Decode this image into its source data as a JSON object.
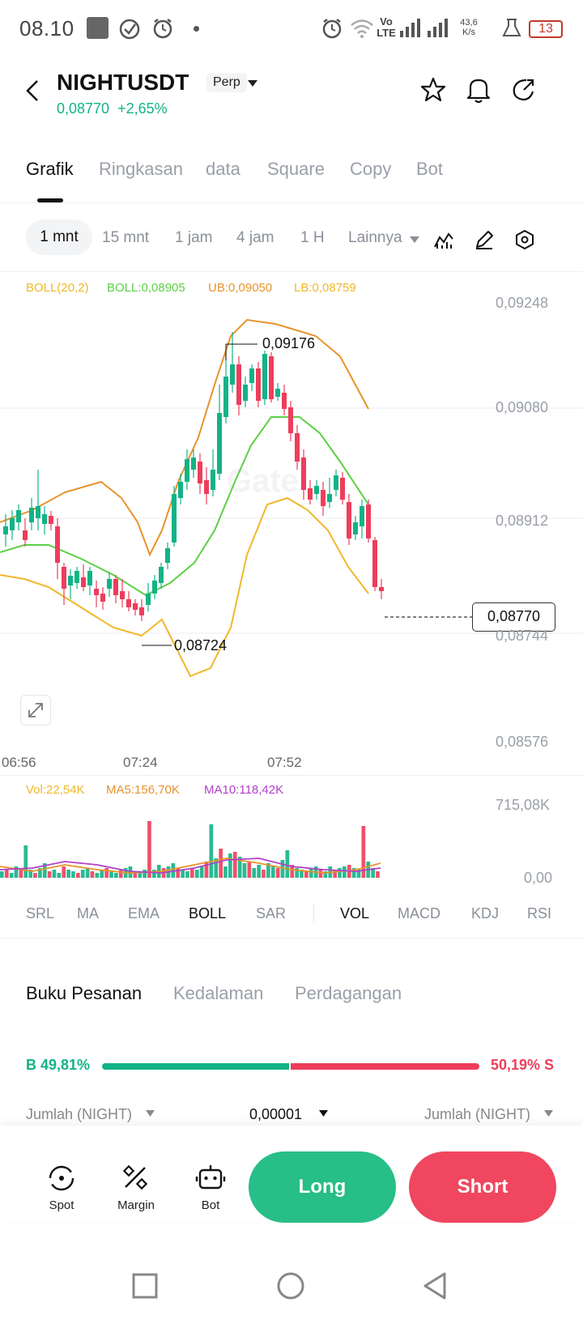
{
  "status_bar": {
    "time": "08.10",
    "network": "Vo LTE",
    "speed_value": "43,6",
    "speed_unit": "K/s",
    "battery": "13"
  },
  "header": {
    "pair": "NIGHTUSDT",
    "contract": "Perp",
    "last_price": "0,08770",
    "change": "+2,65%"
  },
  "tabs": [
    "Grafik",
    "Ringkasan",
    "data",
    "Square",
    "Copy",
    "Bot"
  ],
  "active_tab": "Grafik",
  "timeframes": [
    "1 mnt",
    "15 mnt",
    "1 jam",
    "4 jam",
    "1 H",
    "Lainnya"
  ],
  "active_timeframe": "1 mnt",
  "chart": {
    "boll_legend": {
      "params": "BOLL(20,2)",
      "mid": "BOLL:0,08905",
      "ub": "UB:0,09050",
      "lb": "LB:0,08759"
    },
    "y_ticks": [
      "0,09248",
      "0,09080",
      "0,08912",
      "0,08744",
      "0,08576"
    ],
    "x_ticks": [
      "06:56",
      "07:24",
      "07:52"
    ],
    "high_annotation": "0,09176",
    "low_annotation": "0,08724",
    "current_price_tag": "0,08770",
    "watermark": "Gate",
    "colors": {
      "up": "#12b386",
      "down": "#ee3d5b",
      "ub": "#e8932b",
      "mid": "#5cd046",
      "lb": "#f0b82a"
    }
  },
  "volume": {
    "vol": "Vol:22,54K",
    "ma5": "MA5:156,70K",
    "ma10": "MA10:118,42K",
    "y_max": "715,08K",
    "y_min": "0,00"
  },
  "chart_data": {
    "type": "candlestick",
    "x_ticks": [
      "06:56",
      "07:24",
      "07:52"
    ],
    "y_range": [
      0.08576,
      0.09248
    ],
    "ohlc_summary": {
      "high": 0.09176,
      "low": 0.08724,
      "last": 0.0877
    },
    "bollinger": {
      "period": 20,
      "k": 2,
      "mid": 0.08905,
      "upper": 0.0905,
      "lower": 0.08759
    },
    "volume_range": [
      0,
      715.08
    ]
  },
  "indicators": [
    "SRL",
    "MA",
    "EMA",
    "BOLL",
    "SAR",
    "VOL",
    "MACD",
    "KDJ",
    "RSI"
  ],
  "active_indicators": [
    "BOLL",
    "VOL"
  ],
  "orderbook": {
    "tabs": [
      "Buku Pesanan",
      "Kedalaman",
      "Perdagangan"
    ],
    "buy_pct": "B 49,81%",
    "sell_pct": "50,19% S",
    "buy_ratio": 0.4981,
    "col_left": "Jumlah (NIGHT)",
    "precision": "0,00001",
    "col_right": "Jumlah (NIGHT)"
  },
  "bottom_actions": {
    "spot": "Spot",
    "margin": "Margin",
    "bot": "Bot",
    "long": "Long",
    "short": "Short"
  }
}
